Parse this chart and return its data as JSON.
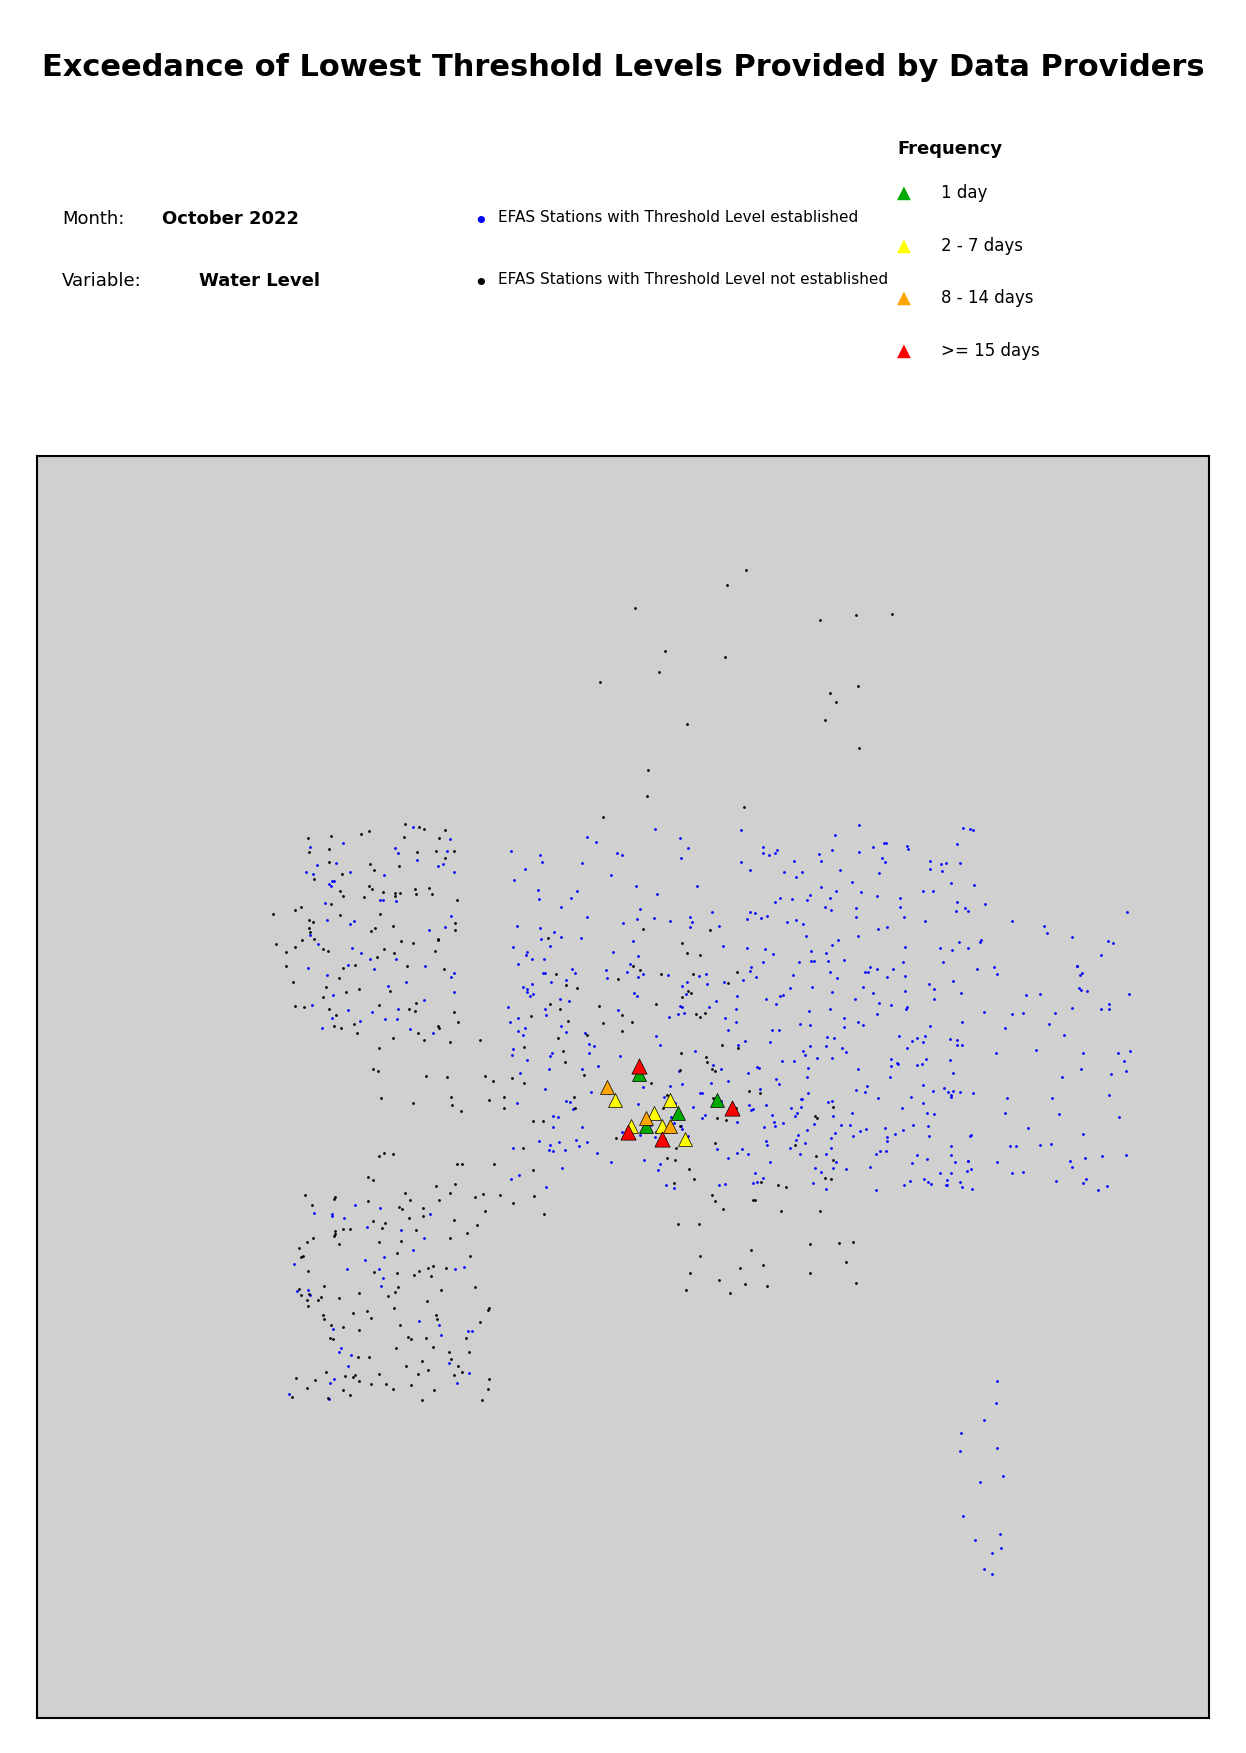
{
  "title": "Exceedance of Lowest Threshold Levels Provided by Data Providers",
  "month_label": "Month:",
  "month_value": "October 2022",
  "variable_label": "Variable:",
  "variable_value": "Water Level",
  "legend_freq_title": "Frequency",
  "legend_items": [
    {
      "label": "1 day",
      "color": "#00AA00",
      "marker": "^"
    },
    {
      "label": "2 - 7 days",
      "color": "#FFFF00",
      "marker": "^"
    },
    {
      "label": "8 - 14 days",
      "color": "#FFA500",
      "marker": "^"
    },
    {
      ">= 15 days": "label",
      "label": ">= 15 days",
      "color": "#FF0000",
      "marker": "^"
    }
  ],
  "station_with_threshold_color": "#0000FF",
  "station_without_threshold_color": "#000000",
  "map_xlim": [
    -25,
    50
  ],
  "map_ylim": [
    24,
    72
  ],
  "figsize": [
    12.46,
    17.53
  ],
  "dpi": 100,
  "title_fontsize": 22,
  "title_fontweight": "bold",
  "map_background": "#FFFFFF",
  "border_color": "#000000"
}
